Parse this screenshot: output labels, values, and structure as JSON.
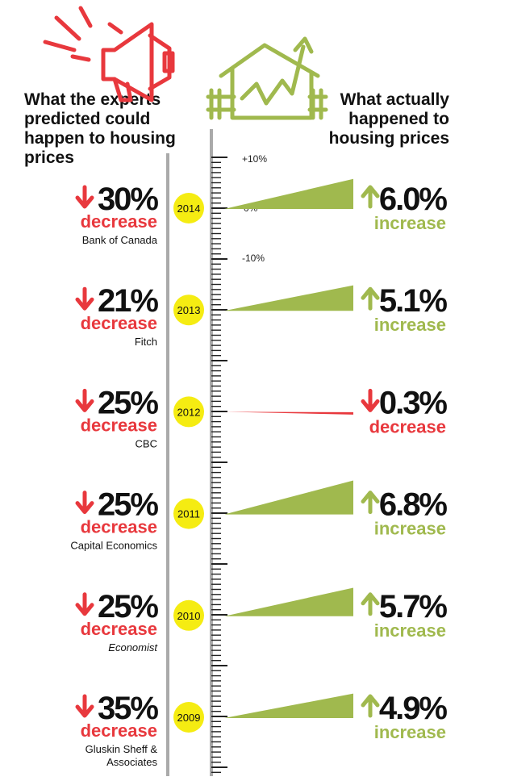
{
  "header": {
    "left": "What the experts predicted could happen to housing prices",
    "right": "What actually happened to housing prices"
  },
  "icons": {
    "left": "megaphone-icon",
    "right": "house-with-rising-chart-icon"
  },
  "colors": {
    "red": "#e8383d",
    "green": "#a0b94e",
    "yellow": "#f5ec12",
    "axis": "#aaaaaa"
  },
  "chart_data": {
    "type": "bar",
    "scale_labels": [
      "+10%",
      "0%",
      "-10%"
    ],
    "rows": [
      {
        "year": "2014",
        "predicted": "30%",
        "predicted_label": "decrease",
        "source": "Bank of Canada",
        "actual": 6.0,
        "actual_text": "6.0%",
        "actual_label": "increase",
        "direction": "up"
      },
      {
        "year": "2013",
        "predicted": "21%",
        "predicted_label": "decrease",
        "source": "Fitch",
        "actual": 5.1,
        "actual_text": "5.1%",
        "actual_label": "increase",
        "direction": "up"
      },
      {
        "year": "2012",
        "predicted": "25%",
        "predicted_label": "decrease",
        "source": "CBC",
        "actual": -0.3,
        "actual_text": "0.3%",
        "actual_label": "decrease",
        "direction": "down"
      },
      {
        "year": "2011",
        "predicted": "25%",
        "predicted_label": "decrease",
        "source": "Capital Economics",
        "actual": 6.8,
        "actual_text": "6.8%",
        "actual_label": "increase",
        "direction": "up"
      },
      {
        "year": "2010",
        "predicted": "25%",
        "predicted_label": "decrease",
        "source": "Economist",
        "actual": 5.7,
        "actual_text": "5.7%",
        "actual_label": "increase",
        "direction": "up"
      },
      {
        "year": "2009",
        "predicted": "35%",
        "predicted_label": "decrease",
        "source": "Gluskin Sheff & Associates",
        "actual": 4.9,
        "actual_text": "4.9%",
        "actual_label": "increase",
        "direction": "up"
      }
    ]
  }
}
